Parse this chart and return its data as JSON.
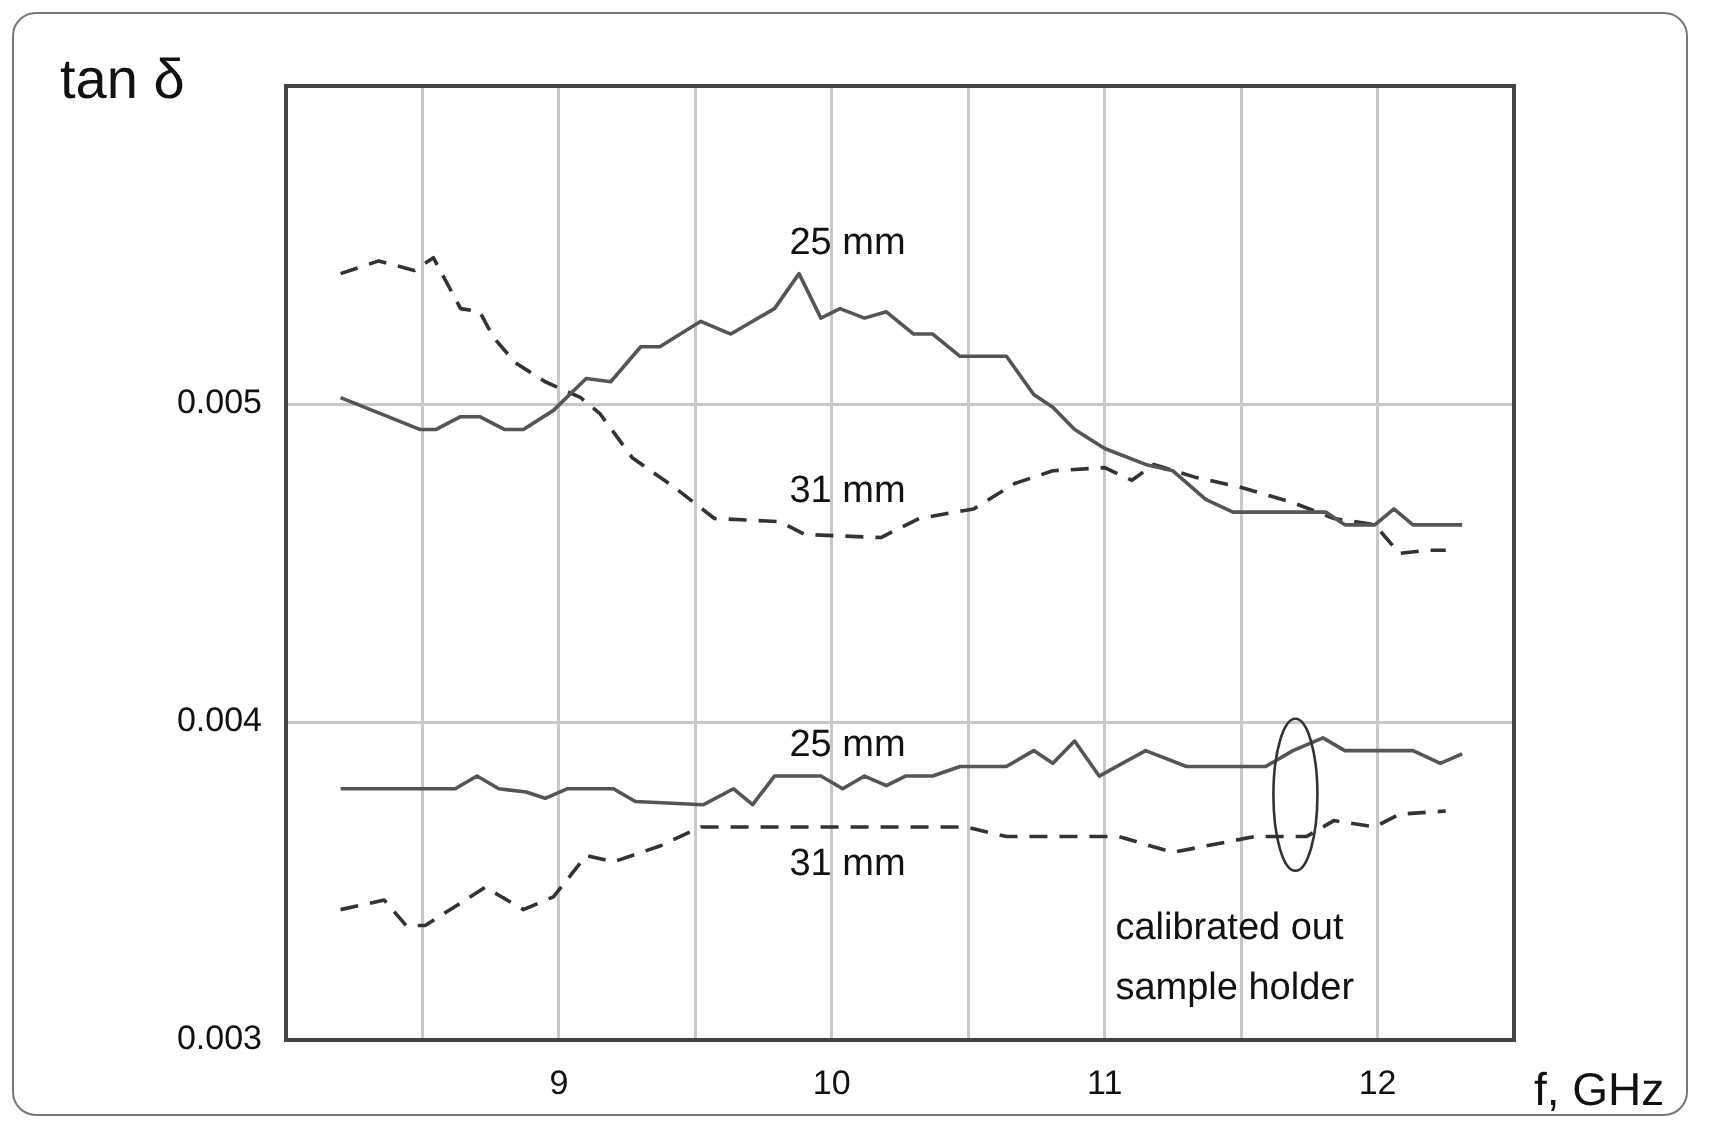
{
  "chart_data": {
    "type": "line",
    "ylabel": "tan δ",
    "xlabel": "f, GHz",
    "xlim": [
      8,
      12.5
    ],
    "ylim": [
      0.003,
      0.006
    ],
    "xticks": [
      {
        "value": 8.5,
        "label": null
      },
      9,
      {
        "value": 9.5,
        "label": null
      },
      10,
      {
        "value": 10.5,
        "label": null
      },
      11,
      {
        "value": 11.5,
        "label": null
      },
      12
    ],
    "yticks": [
      0.003,
      0.004,
      0.005
    ],
    "grid": true,
    "legend": false,
    "marker": "none",
    "series": [
      {
        "name": "25 mm",
        "color": "#555555",
        "line_style": "solid",
        "x": [
          8.2,
          8.49,
          8.55,
          8.64,
          8.71,
          8.8,
          8.87,
          8.98,
          9.1,
          9.19,
          9.3,
          9.37,
          9.52,
          9.63,
          9.79,
          9.88,
          9.96,
          10.03,
          10.12,
          10.2,
          10.3,
          10.37,
          10.47,
          10.64,
          10.74,
          10.81,
          10.89,
          11,
          11.15,
          11.25,
          11.37,
          11.47,
          11.81,
          11.88,
          11.99,
          12.06,
          12.13,
          12.31
        ],
        "values": [
          0.00502,
          0.00492,
          0.00492,
          0.00496,
          0.00496,
          0.00492,
          0.00492,
          0.00498,
          0.00508,
          0.00507,
          0.00518,
          0.00518,
          0.00526,
          0.00522,
          0.0053,
          0.00541,
          0.00527,
          0.0053,
          0.00527,
          0.00529,
          0.00522,
          0.00522,
          0.00515,
          0.00515,
          0.00503,
          0.00499,
          0.00492,
          0.00486,
          0.00481,
          0.00479,
          0.0047,
          0.00466,
          0.00466,
          0.00462,
          0.00462,
          0.00467,
          0.00462,
          0.00462
        ]
      },
      {
        "name": "31 mm",
        "color": "#333333",
        "line_style": "dashed",
        "x": [
          8.2,
          8.34,
          8.47,
          8.54,
          8.64,
          8.71,
          8.76,
          8.84,
          8.95,
          9.08,
          9.15,
          9.27,
          9.42,
          9.57,
          9.81,
          9.9,
          10.18,
          10.32,
          10.52,
          10.67,
          10.81,
          11,
          11.1,
          11.18,
          11.33,
          11.49,
          11.69,
          11.84,
          11.99,
          12.08,
          12.18,
          12.25
        ],
        "values": [
          0.00541,
          0.00545,
          0.00542,
          0.00546,
          0.0053,
          0.00529,
          0.00521,
          0.00513,
          0.00507,
          0.00502,
          0.00497,
          0.00483,
          0.00474,
          0.00464,
          0.00463,
          0.00459,
          0.00458,
          0.00464,
          0.00467,
          0.00475,
          0.00479,
          0.0048,
          0.00476,
          0.00481,
          0.00477,
          0.00474,
          0.00469,
          0.00464,
          0.00462,
          0.00453,
          0.00454,
          0.00454
        ]
      },
      {
        "name": "25 mm",
        "color": "#555555",
        "line_style": "solid",
        "x": [
          8.2,
          8.62,
          8.7,
          8.78,
          8.88,
          8.95,
          9.03,
          9.2,
          9.28,
          9.53,
          9.64,
          9.71,
          9.79,
          9.96,
          10.04,
          10.12,
          10.2,
          10.27,
          10.37,
          10.47,
          10.64,
          10.74,
          10.81,
          10.89,
          10.98,
          11.15,
          11.3,
          11.59,
          11.69,
          11.8,
          11.88,
          12.13,
          12.23,
          12.31
        ],
        "values": [
          0.00379,
          0.00379,
          0.00383,
          0.00379,
          0.00378,
          0.00376,
          0.00379,
          0.00379,
          0.00375,
          0.00374,
          0.00379,
          0.00374,
          0.00383,
          0.00383,
          0.00379,
          0.00383,
          0.0038,
          0.00383,
          0.00383,
          0.00386,
          0.00386,
          0.00391,
          0.00387,
          0.00394,
          0.00383,
          0.00391,
          0.00386,
          0.00386,
          0.00391,
          0.00395,
          0.00391,
          0.00391,
          0.00387,
          0.0039
        ]
      },
      {
        "name": "31 mm",
        "color": "#333333",
        "line_style": "dashed",
        "x": [
          8.2,
          8.36,
          8.44,
          8.51,
          8.62,
          8.73,
          8.87,
          8.98,
          9.1,
          9.2,
          9.37,
          9.52,
          10.18,
          10.49,
          10.64,
          11.05,
          11.25,
          11.55,
          11.74,
          11.84,
          11.99,
          12.08,
          12.25
        ],
        "values": [
          0.00341,
          0.00344,
          0.00336,
          0.00336,
          0.00342,
          0.00348,
          0.00341,
          0.00345,
          0.00358,
          0.00356,
          0.00361,
          0.00367,
          0.00367,
          0.00367,
          0.00364,
          0.00364,
          0.00359,
          0.00364,
          0.00364,
          0.00369,
          0.00367,
          0.00371,
          0.00372
        ]
      }
    ],
    "annotations": [
      "calibrated out sample holder"
    ]
  }
}
